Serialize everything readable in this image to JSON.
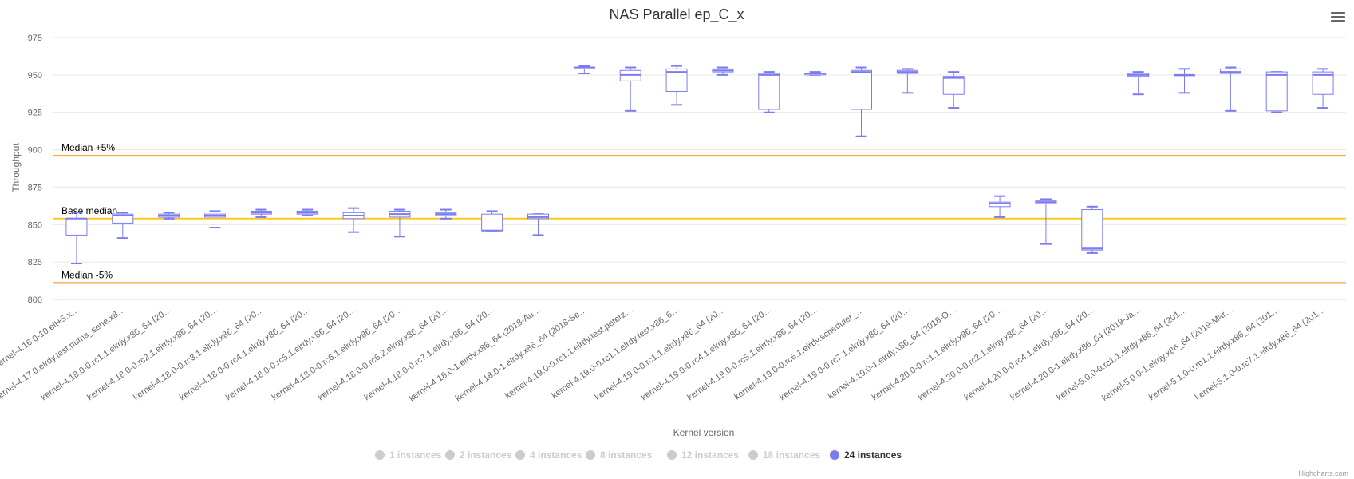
{
  "chart_data": {
    "type": "boxplot",
    "title": "NAS Parallel ep_C_x",
    "xlabel": "Kernel version",
    "ylabel": "Throughput",
    "ylim": [
      800,
      975
    ],
    "yticks": [
      800,
      825,
      850,
      875,
      900,
      925,
      950,
      975
    ],
    "grid": true,
    "legend_position": "bottom-center",
    "categories": [
      "kernel-4.16.0-10.elt+5.x…",
      "kernel-4.17.0.elrdy.test.numa_serie.x8…",
      "kernel-4.18.0-0.rc1.1.elrdy.x86_64 (20…",
      "kernel-4.18.0-0.rc2.1.elrdy.x86_64 (20…",
      "kernel-4.18.0-0.rc3.1.elrdy.x86_64 (20…",
      "kernel-4.18.0-0.rc4.1.elrdy.x86_64 (20…",
      "kernel-4.18.0-0.rc5.1.elrdy.x86_64 (20…",
      "kernel-4.18.0-0.rc6.1.elrdy.x86_64 (20…",
      "kernel-4.18.0-0.rc6.2.elrdy.x86_64 (20…",
      "kernel-4.18.0-0.rc7.1.elrdy.x86_64 (20…",
      "kernel-4.18.0-1.elrdy.x86_64 (2018-Au…",
      "kernel-4.18.0-1.elrdy.x86_64 (2018-Se…",
      "kernel-4.19.0-0.rc1.1.elrdy.test.peterz…",
      "kernel-4.19.0-0.rc1.1.elrdy.test.x86_6…",
      "kernel-4.19.0-0.rc1.1.elrdy.x86_64 (20…",
      "kernel-4.19.0-0.rc4.1.elrdy.x86_64 (20…",
      "kernel-4.19.0-0.rc5.1.elrdy.x86_64 (20…",
      "kernel-4.19.0-0.rc6.1.elrdy.scheduler_…",
      "kernel-4.19.0-0.rc7.1.elrdy.x86_64 (20…",
      "kernel-4.19.0-1.elrdy.x86_64 (2018-O…",
      "kernel-4.20.0-0.rc1.1.elrdy.x86_64 (20…",
      "kernel-4.20.0-0.rc2.1.elrdy.x86_64 (20…",
      "kernel-4.20.0-0.rc4.1.elrdy.x86_64 (20…",
      "kernel-4.20.0-1.elrdy.x86_64 (2019-Ja…",
      "kernel-5.0.0-0.rc1.1.elrdy.x86_64 (201…",
      "kernel-5.0.0-1.elrdy.x86_64 (2019-Mar…",
      "kernel-5.1.0-0.rc1.1.elrdy.x86_64 (201…",
      "kernel-5.1.0-0.rc7.1.elrdy.x86_64 (201…"
    ],
    "series": [
      {
        "name": "24 instances",
        "color": "#7b7bf0",
        "boxes": [
          {
            "index": 0,
            "low": 824,
            "q1": 843,
            "median": 854,
            "q3": 854,
            "high": 858
          },
          {
            "index": 1,
            "low": 841,
            "q1": 851,
            "median": 856,
            "q3": 857,
            "high": 858
          },
          {
            "index": 2,
            "low": 854,
            "q1": 855,
            "median": 856,
            "q3": 857,
            "high": 858
          },
          {
            "index": 3,
            "low": 848,
            "q1": 855,
            "median": 856,
            "q3": 857,
            "high": 859
          },
          {
            "index": 4,
            "low": 855,
            "q1": 857,
            "median": 858,
            "q3": 859,
            "high": 860
          },
          {
            "index": 5,
            "low": 856,
            "q1": 857,
            "median": 858,
            "q3": 859,
            "high": 860
          },
          {
            "index": 6,
            "low": 845,
            "q1": 854,
            "median": 856,
            "q3": 858,
            "high": 861
          },
          {
            "index": 7,
            "low": 842,
            "q1": 855,
            "median": 857,
            "q3": 859,
            "high": 860
          },
          {
            "index": 8,
            "low": 854,
            "q1": 856,
            "median": 857,
            "q3": 858,
            "high": 860
          },
          {
            "index": 9,
            "low": 846,
            "q1": 846,
            "median": 846,
            "q3": 857,
            "high": 859
          },
          {
            "index": 10,
            "low": 843,
            "q1": 854,
            "median": 855,
            "q3": 857,
            "high": 857
          },
          {
            "index": 11,
            "low": 951,
            "q1": 954,
            "median": 955,
            "q3": 955,
            "high": 956
          },
          {
            "index": 12,
            "low": 926,
            "q1": 946,
            "median": 950,
            "q3": 953,
            "high": 955
          },
          {
            "index": 13,
            "low": 930,
            "q1": 939,
            "median": 952,
            "q3": 954,
            "high": 956
          },
          {
            "index": 14,
            "low": 950,
            "q1": 952,
            "median": 953,
            "q3": 954,
            "high": 955
          },
          {
            "index": 15,
            "low": 925,
            "q1": 927,
            "median": 950,
            "q3": 951,
            "high": 952
          },
          {
            "index": 16,
            "low": 950,
            "q1": 950,
            "median": 951,
            "q3": 951,
            "high": 952
          },
          {
            "index": 17,
            "low": 909,
            "q1": 927,
            "median": 952,
            "q3": 953,
            "high": 955
          },
          {
            "index": 18,
            "low": 938,
            "q1": 951,
            "median": 952,
            "q3": 953,
            "high": 954
          },
          {
            "index": 19,
            "low": 928,
            "q1": 937,
            "median": 948,
            "q3": 949,
            "high": 952
          },
          {
            "index": 20,
            "low": 855,
            "q1": 862,
            "median": 864,
            "q3": 865,
            "high": 869
          },
          {
            "index": 21,
            "low": 837,
            "q1": 864,
            "median": 865,
            "q3": 866,
            "high": 867
          },
          {
            "index": 22,
            "low": 831,
            "q1": 833,
            "median": 834,
            "q3": 860,
            "high": 862
          },
          {
            "index": 23,
            "low": 937,
            "q1": 949,
            "median": 950,
            "q3": 951,
            "high": 952
          },
          {
            "index": 24,
            "low": 938,
            "q1": 950,
            "median": 950,
            "q3": 950,
            "high": 954
          },
          {
            "index": 25,
            "low": 926,
            "q1": 951,
            "median": 952,
            "q3": 954,
            "high": 955
          },
          {
            "index": 26,
            "low": 925,
            "q1": 926,
            "median": 950,
            "q3": 952,
            "high": 952
          },
          {
            "index": 27,
            "low": 928,
            "q1": 937,
            "median": 950,
            "q3": 952,
            "high": 954
          }
        ]
      }
    ],
    "plot_lines": [
      {
        "label": "Median +5%",
        "value": 896,
        "color": "#f7a30e"
      },
      {
        "label": "Base median",
        "value": 854,
        "color": "#ffc820"
      },
      {
        "label": "Median -5%",
        "value": 811,
        "color": "#f78c0e"
      }
    ],
    "legend": [
      {
        "label": "1 instances",
        "active": false,
        "color": "#cccccc"
      },
      {
        "label": "2 instances",
        "active": false,
        "color": "#cccccc"
      },
      {
        "label": "4 instances",
        "active": false,
        "color": "#cccccc"
      },
      {
        "label": "8 instances",
        "active": false,
        "color": "#cccccc"
      },
      {
        "label": "12 instances",
        "active": false,
        "color": "#cccccc"
      },
      {
        "label": "18 instances",
        "active": false,
        "color": "#cccccc"
      },
      {
        "label": "24 instances",
        "active": true,
        "color": "#7b7bf0"
      }
    ],
    "credits": "Highcharts.com"
  },
  "menu": {
    "icon": "hamburger-menu-icon"
  }
}
